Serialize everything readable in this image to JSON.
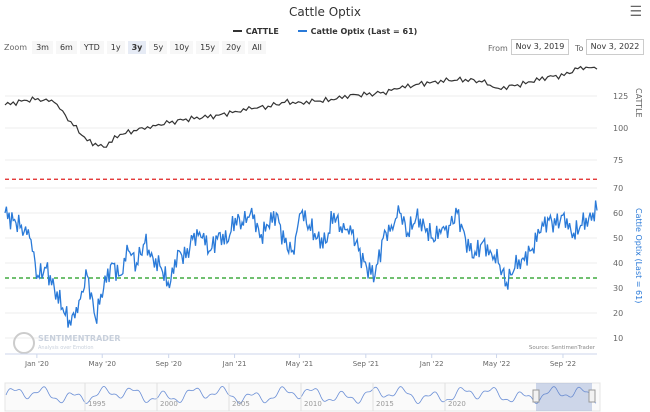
{
  "header": {
    "title": "Cattle Optix",
    "menu_icon": "hamburger-menu-icon"
  },
  "legend": [
    {
      "label": "CATTLE",
      "color": "#333333"
    },
    {
      "label": "Cattle Optix (Last = 61)",
      "color": "#2a7ad8"
    }
  ],
  "zoom": {
    "label": "Zoom",
    "buttons": [
      "3m",
      "6m",
      "YTD",
      "1y",
      "3y",
      "5y",
      "10y",
      "15y",
      "20y",
      "All"
    ],
    "selected": "3y"
  },
  "range": {
    "from_label": "From",
    "from": "Nov 3, 2019",
    "to_label": "To",
    "to": "Nov 3, 2022"
  },
  "source": "Source: SentimenTrader",
  "watermark": {
    "name": "SENTIMENTRADER",
    "tagline": "Analysis over Emotion"
  },
  "navigator": {
    "labels": [
      "1995",
      "2000",
      "2005",
      "2010",
      "2015",
      "2020"
    ]
  },
  "chart_data": [
    {
      "type": "line",
      "title": "Cattle Optix",
      "series_name": "CATTLE",
      "color": "#333333",
      "ylabel": "CATTLE",
      "yticks": [
        75,
        100,
        125
      ],
      "ylim": [
        70,
        152
      ],
      "x_start": "2019-11-03",
      "x_end": "2022-11-03",
      "values": [
        118,
        121,
        123,
        120,
        105,
        90,
        85,
        95,
        98,
        102,
        104,
        107,
        108,
        110,
        113,
        115,
        117,
        120,
        120,
        121,
        122,
        126,
        126,
        128,
        131,
        134,
        136,
        137,
        138,
        136,
        131,
        133,
        136,
        140,
        141,
        148,
        146
      ]
    },
    {
      "type": "line",
      "series_name": "Cattle Optix (Last = 61)",
      "color": "#2a7ad8",
      "ylabel": "Cattle Optix (Last = 61)",
      "yticks": [
        10,
        20,
        30,
        40,
        50,
        60,
        70
      ],
      "ylim": [
        6,
        74
      ],
      "reference_lines": [
        {
          "value": 73.5,
          "color": "#e02020"
        },
        {
          "value": 34,
          "color": "#1a9a1a"
        }
      ],
      "x_start": "2019-11-03",
      "x_end": "2022-11-03",
      "values": [
        60,
        57,
        55,
        50,
        35,
        38,
        30,
        22,
        15,
        25,
        35,
        18,
        30,
        40,
        35,
        45,
        40,
        48,
        42,
        38,
        30,
        45,
        42,
        52,
        50,
        45,
        52,
        48,
        58,
        55,
        62,
        50,
        55,
        60,
        48,
        45,
        60,
        55,
        50,
        48,
        60,
        52,
        55,
        45,
        38,
        35,
        50,
        55,
        60,
        52,
        58,
        55,
        50,
        52,
        55,
        60,
        50,
        42,
        48,
        45,
        40,
        32,
        38,
        42,
        45,
        52,
        58,
        55,
        60,
        50,
        55,
        58,
        61
      ]
    }
  ],
  "x_axis": {
    "ticks": [
      "Jan '20",
      "May '20",
      "Sep '20",
      "Jan '21",
      "May '21",
      "Sep '21",
      "Jan '22",
      "May '22",
      "Sep '22"
    ],
    "tick_dates": [
      "2020-01-01",
      "2020-05-01",
      "2020-09-01",
      "2021-01-01",
      "2021-05-01",
      "2021-09-01",
      "2022-01-01",
      "2022-05-01",
      "2022-09-01"
    ]
  }
}
